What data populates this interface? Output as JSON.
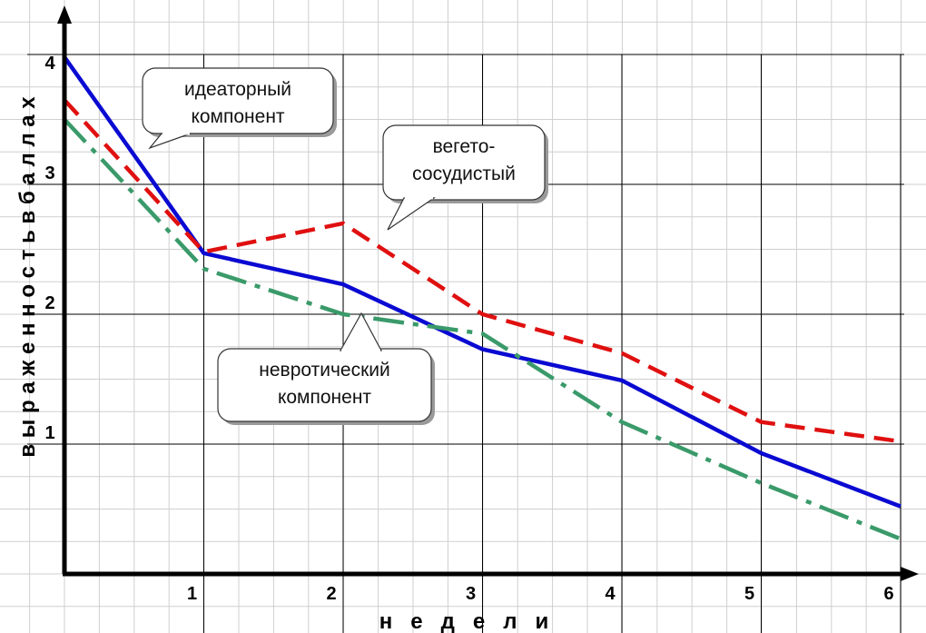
{
  "chart_data": {
    "type": "line",
    "xlabel": "н е д е л и",
    "ylabel": "выраженность в баллах",
    "x": [
      0,
      1,
      2,
      3,
      4,
      5,
      6
    ],
    "xlim": [
      0,
      6
    ],
    "ylim": [
      0,
      4
    ],
    "x_ticks": [
      "1",
      "2",
      "3",
      "4",
      "5",
      "6"
    ],
    "y_ticks": [
      "1",
      "2",
      "3",
      "4"
    ],
    "grid": true,
    "series": [
      {
        "values": [
          3.98,
          2.47,
          2.23,
          1.73,
          1.49,
          0.93,
          0.52
        ],
        "color": "#0a0ad2",
        "style": "solid"
      },
      {
        "values": [
          3.65,
          2.48,
          2.7,
          2.0,
          1.7,
          1.17,
          1.02
        ],
        "color": "#e01010",
        "style": "dashed"
      },
      {
        "values": [
          3.5,
          2.35,
          2.0,
          1.85,
          1.17,
          0.7,
          0.27
        ],
        "color": "#3a9a6a",
        "style": "dashdot"
      }
    ],
    "annotations": [
      {
        "lines": [
          "идеаторный",
          "компонент"
        ]
      },
      {
        "lines": [
          "вегето-",
          "сосудистый"
        ]
      },
      {
        "lines": [
          "невротический",
          "компонент"
        ]
      }
    ]
  }
}
